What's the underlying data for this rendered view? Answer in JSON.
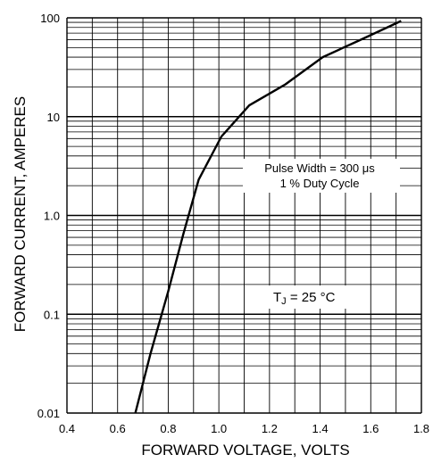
{
  "chart_data": {
    "type": "line",
    "xlabel": "FORWARD VOLTAGE, VOLTS",
    "ylabel": "FORWARD CURRENT, AMPERES",
    "xlim": [
      0.4,
      1.8
    ],
    "ylim": [
      0.01,
      100
    ],
    "yscale": "log",
    "grid": true,
    "x_ticks": [
      "0.4",
      "0.6",
      "0.8",
      "1.0",
      "1.2",
      "1.4",
      "1.6",
      "1.8"
    ],
    "y_ticks": [
      "0.01",
      "0.1",
      "1.0",
      "10",
      "100"
    ],
    "annotations": {
      "pulse_line1": "Pulse Width = 300 μs",
      "pulse_line2": "1 % Duty Cycle",
      "tj_prefix": "T",
      "tj_subscript": "J",
      "tj_suffix": " = 25 °C"
    },
    "series": [
      {
        "x": [
          0.67,
          0.73,
          0.8,
          0.86,
          0.92,
          1.01,
          1.12,
          1.26,
          1.41,
          1.56,
          1.72
        ],
        "y": [
          0.01,
          0.04,
          0.17,
          0.65,
          2.3,
          6.3,
          13,
          21,
          40,
          60,
          93
        ]
      }
    ]
  }
}
